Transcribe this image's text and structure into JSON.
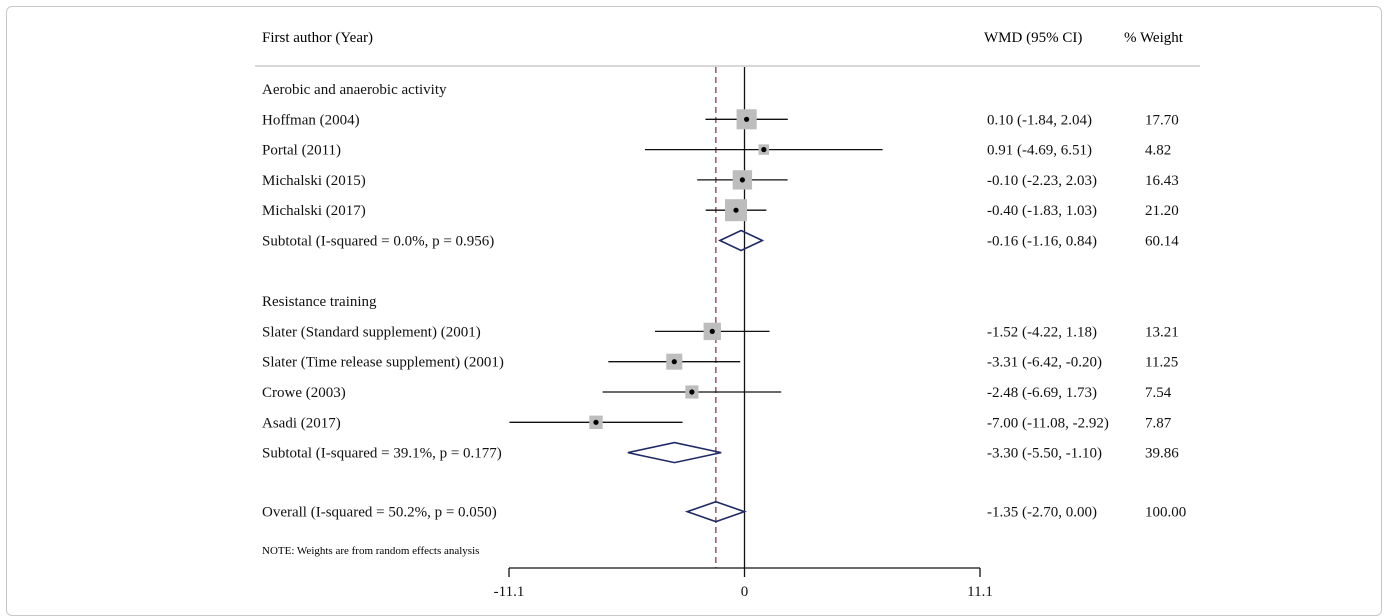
{
  "chart_data": {
    "type": "forest",
    "columns": {
      "study": "First author (Year)",
      "effect": "WMD (95% CI)",
      "weight": "% Weight"
    },
    "x_ticks": [
      "-11.1",
      "0",
      "11.1"
    ],
    "xlim": [
      -11.1,
      11.1
    ],
    "reference_line": 0,
    "overall_line": -1.35,
    "note": "NOTE: Weights are from random effects analysis",
    "groups": [
      {
        "label": "Aerobic and anaerobic activity",
        "studies": [
          {
            "name": "Hoffman (2004)",
            "estimate": 0.1,
            "lower": -1.84,
            "upper": 2.04,
            "ci_text": "0.10 (-1.84, 2.04)",
            "weight": 17.7,
            "weight_text": "17.70"
          },
          {
            "name": "Portal (2011)",
            "estimate": 0.91,
            "lower": -4.69,
            "upper": 6.51,
            "ci_text": "0.91 (-4.69, 6.51)",
            "weight": 4.82,
            "weight_text": "4.82"
          },
          {
            "name": "Michalski (2015)",
            "estimate": -0.1,
            "lower": -2.23,
            "upper": 2.03,
            "ci_text": "-0.10 (-2.23, 2.03)",
            "weight": 16.43,
            "weight_text": "16.43"
          },
          {
            "name": "Michalski (2017)",
            "estimate": -0.4,
            "lower": -1.83,
            "upper": 1.03,
            "ci_text": "-0.40 (-1.83, 1.03)",
            "weight": 21.2,
            "weight_text": "21.20"
          }
        ],
        "subtotal": {
          "label": "Subtotal  (I-squared = 0.0%, p = 0.956)",
          "estimate": -0.16,
          "lower": -1.16,
          "upper": 0.84,
          "ci_text": "-0.16 (-1.16, 0.84)",
          "weight_text": "60.14"
        }
      },
      {
        "label": "Resistance training",
        "studies": [
          {
            "name": "Slater (Standard supplement) (2001)",
            "estimate": -1.52,
            "lower": -4.22,
            "upper": 1.18,
            "ci_text": "-1.52 (-4.22, 1.18)",
            "weight": 13.21,
            "weight_text": "13.21"
          },
          {
            "name": "Slater (Time release supplement) (2001)",
            "estimate": -3.31,
            "lower": -6.42,
            "upper": -0.2,
            "ci_text": "-3.31 (-6.42, -0.20)",
            "weight": 11.25,
            "weight_text": "11.25"
          },
          {
            "name": "Crowe (2003)",
            "estimate": -2.48,
            "lower": -6.69,
            "upper": 1.73,
            "ci_text": "-2.48 (-6.69, 1.73)",
            "weight": 7.54,
            "weight_text": "7.54"
          },
          {
            "name": "Asadi (2017)",
            "estimate": -7.0,
            "lower": -11.08,
            "upper": -2.92,
            "ci_text": "-7.00 (-11.08, -2.92)",
            "weight": 7.87,
            "weight_text": "7.87"
          }
        ],
        "subtotal": {
          "label": "Subtotal  (I-squared = 39.1%, p = 0.177)",
          "estimate": -3.3,
          "lower": -5.5,
          "upper": -1.1,
          "ci_text": "-3.30 (-5.50, -1.10)",
          "weight_text": "39.86"
        }
      }
    ],
    "overall": {
      "label": "Overall  (I-squared = 50.2%, p = 0.050)",
      "estimate": -1.35,
      "lower": -2.7,
      "upper": 0.0,
      "ci_text": "-1.35 (-2.70, 0.00)",
      "weight_text": "100.00"
    },
    "colors": {
      "diamond": "#1f2a66",
      "box": "#bdbdbd",
      "overall_line": "#8b3a4a",
      "text": "#111111"
    }
  }
}
